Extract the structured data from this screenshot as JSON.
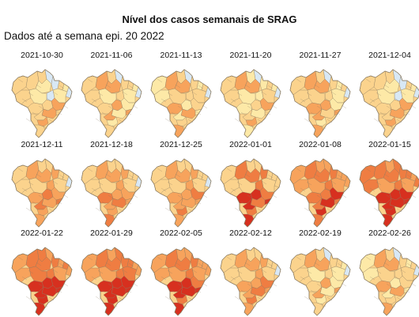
{
  "title": "Nível dos casos semanais de SRAG",
  "subtitle": "Dados até a semana epi. 20 2022",
  "colors": {
    "none": "#d8e8f5",
    "low": "#fde9a7",
    "mid": "#fbd38d",
    "elev": "#f7a35c",
    "high": "#ef7d42",
    "vhigh": "#d7301f",
    "border": "#8a7a60"
  },
  "maps": [
    {
      "date": "2021-10-30",
      "level": 0
    },
    {
      "date": "2021-11-06",
      "level": 1
    },
    {
      "date": "2021-11-13",
      "level": 1
    },
    {
      "date": "2021-11-20",
      "level": 1
    },
    {
      "date": "2021-11-27",
      "level": 1
    },
    {
      "date": "2021-12-04",
      "level": 0
    },
    {
      "date": "2021-12-11",
      "level": 2
    },
    {
      "date": "2021-12-18",
      "level": 2
    },
    {
      "date": "2021-12-25",
      "level": 2
    },
    {
      "date": "2022-01-01",
      "level": 3
    },
    {
      "date": "2022-01-08",
      "level": 4
    },
    {
      "date": "2022-01-15",
      "level": 5
    },
    {
      "date": "2022-01-22",
      "level": 5
    },
    {
      "date": "2022-01-29",
      "level": 5
    },
    {
      "date": "2022-02-05",
      "level": 4
    },
    {
      "date": "2022-02-12",
      "level": 2
    },
    {
      "date": "2022-02-19",
      "level": 1
    },
    {
      "date": "2022-02-26",
      "level": 1
    }
  ]
}
